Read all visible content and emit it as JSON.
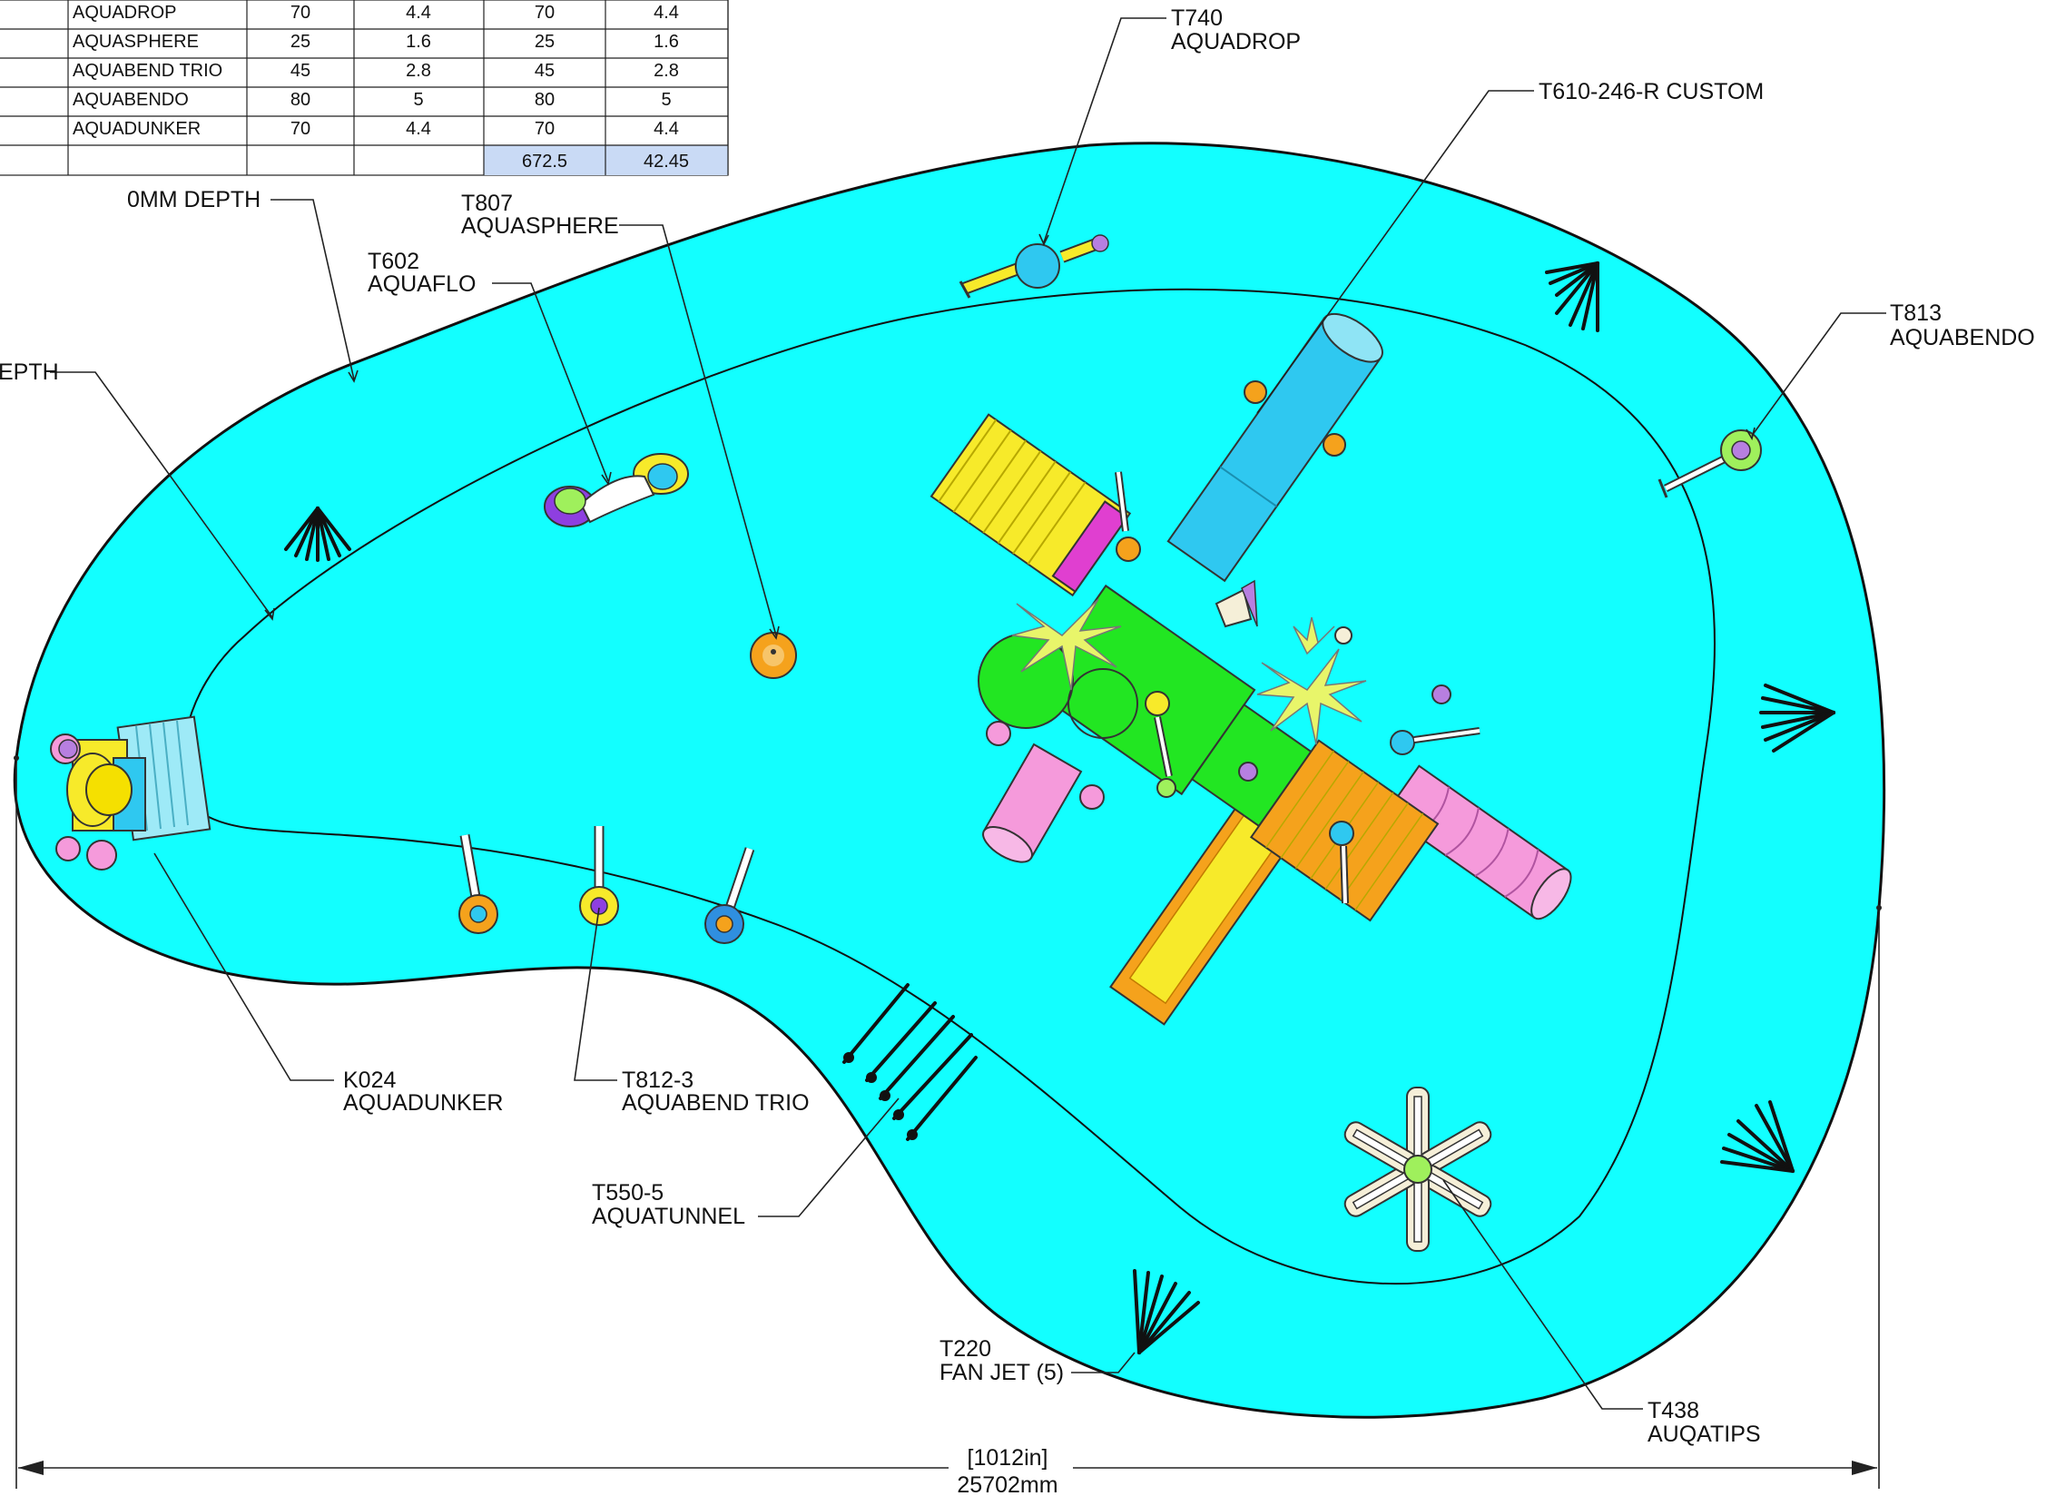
{
  "table": {
    "rows": [
      [
        "AQUADROP",
        "70",
        "4.4",
        "70",
        "4.4"
      ],
      [
        "AQUASPHERE",
        "25",
        "1.6",
        "25",
        "1.6"
      ],
      [
        "AQUABEND TRIO",
        "45",
        "2.8",
        "45",
        "2.8"
      ],
      [
        "AQUABENDO",
        "80",
        "5",
        "80",
        "5"
      ],
      [
        "AQUADUNKER",
        "70",
        "4.4",
        "70",
        "4.4"
      ]
    ],
    "total_col4": "672.5",
    "total_col5": "42.45"
  },
  "labels": {
    "depth_0": "0MM DEPTH",
    "depth_partial": "EPTH",
    "t807_code": "T807",
    "t807_name": "AQUASPHERE",
    "t602_code": "T602",
    "t602_name": "AQUAFLO",
    "t740_code": "T740",
    "t740_name": "AQUADROP",
    "t610": "T610-246-R CUSTOM",
    "t813_code": "T813",
    "t813_name": "AQUABENDO",
    "k024_code": "K024",
    "k024_name": "AQUADUNKER",
    "t812_code": "T812-3",
    "t812_name": "AQUABEND TRIO",
    "t550_code": "T550-5",
    "t550_name": "AQUATUNNEL",
    "t220_code": "T220",
    "t220_name": "FAN JET (5)",
    "t438_code": "T438",
    "t438_name": "AUQATIPS"
  },
  "dimension": {
    "imperial": "[1012in]",
    "metric": "25702mm"
  },
  "colors": {
    "pool": "#12FFFF",
    "deck_green": "#22E622",
    "slide_yellow": "#F7EA2A",
    "slide_orange": "#F5A21C",
    "slide_blue": "#2FC8F0",
    "slide_pink": "#F59ADB",
    "total_cell": "#C9DAF5"
  }
}
